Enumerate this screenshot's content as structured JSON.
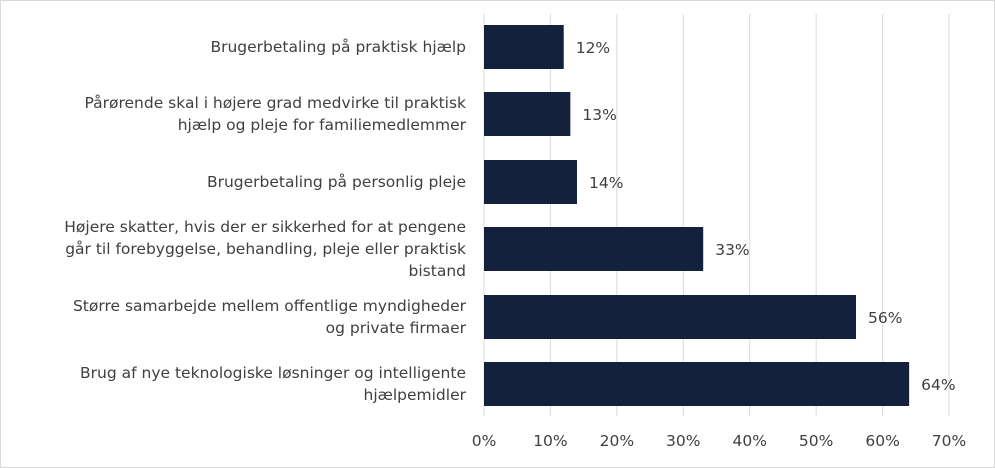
{
  "chart_data": {
    "type": "bar",
    "orientation": "horizontal",
    "title": "",
    "xlabel": "",
    "ylabel": "",
    "xlim": [
      0,
      70
    ],
    "x_ticks": [
      "0%",
      "10%",
      "20%",
      "30%",
      "40%",
      "50%",
      "60%",
      "70%"
    ],
    "grid": "vertical",
    "bar_color": "#14213d",
    "categories": [
      [
        "Brugerbetaling på praktisk hjælp"
      ],
      [
        "Pårørende skal i højere grad medvirke til praktisk",
        "hjælp og pleje for familiemedlemmer"
      ],
      [
        "Brugerbetaling på personlig pleje"
      ],
      [
        "Højere skatter, hvis der er sikkerhed for at pengene",
        "går til forebyggelse, behandling, pleje eller praktisk",
        "bistand"
      ],
      [
        "Større samarbejde mellem offentlige myndigheder",
        "og private firmaer"
      ],
      [
        "Brug af nye teknologiske løsninger og intelligente",
        "hjælpemidler"
      ]
    ],
    "values": [
      12,
      13,
      14,
      33,
      56,
      64
    ],
    "data_labels": [
      "12%",
      "13%",
      "14%",
      "33%",
      "56%",
      "64%"
    ]
  }
}
